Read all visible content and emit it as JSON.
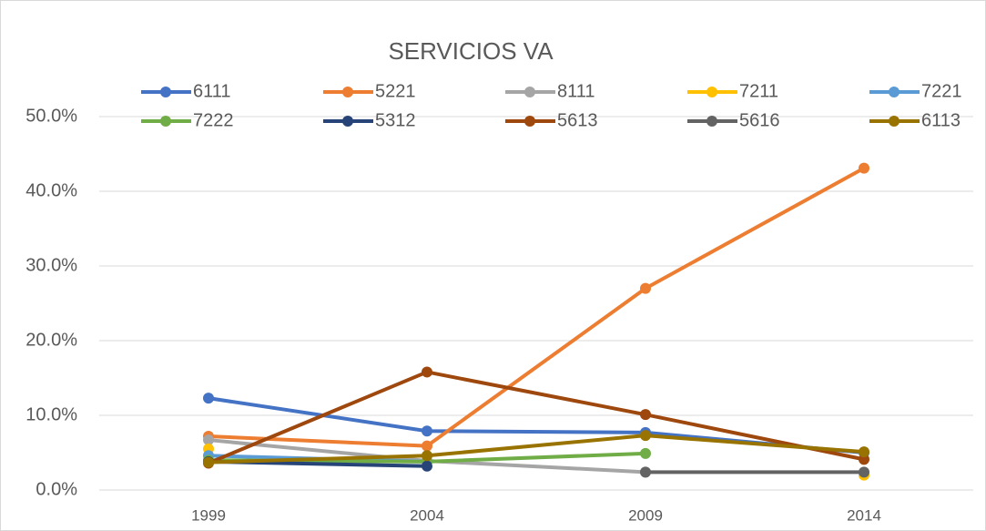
{
  "chart_data": {
    "type": "line",
    "title": "SERVICIOS VA",
    "categories": [
      "1999",
      "2004",
      "2009",
      "2014"
    ],
    "series": [
      {
        "name": "6111",
        "color": "#4472c4",
        "values": [
          12.3,
          7.9,
          7.7,
          5.0
        ]
      },
      {
        "name": "5221",
        "color": "#ed7d31",
        "values": [
          7.2,
          5.9,
          27.0,
          43.1
        ]
      },
      {
        "name": "8111",
        "color": "#a5a5a5",
        "values": [
          6.7,
          3.9,
          2.4,
          null
        ]
      },
      {
        "name": "7211",
        "color": "#ffc000",
        "values": [
          5.5,
          null,
          null,
          2.0
        ]
      },
      {
        "name": "7221",
        "color": "#5b9bd5",
        "values": [
          4.6,
          3.8,
          null,
          null
        ]
      },
      {
        "name": "7222",
        "color": "#70ad47",
        "values": [
          4.0,
          3.8,
          4.9,
          null
        ]
      },
      {
        "name": "5312",
        "color": "#264478",
        "values": [
          3.8,
          3.2,
          null,
          null
        ]
      },
      {
        "name": "5613",
        "color": "#9e480e",
        "values": [
          3.6,
          15.8,
          10.1,
          4.1
        ]
      },
      {
        "name": "5616",
        "color": "#636363",
        "values": [
          null,
          null,
          2.4,
          2.4
        ]
      },
      {
        "name": "6113",
        "color": "#997300",
        "values": [
          3.7,
          4.6,
          7.3,
          5.1
        ]
      }
    ],
    "ylim": [
      0,
      50
    ],
    "yticks": [
      {
        "value": 0,
        "label": "0.0%"
      },
      {
        "value": 10,
        "label": "10.0%"
      },
      {
        "value": 20,
        "label": "20.0%"
      },
      {
        "value": 30,
        "label": "30.0%"
      },
      {
        "value": 40,
        "label": "40.0%"
      },
      {
        "value": 50,
        "label": "50.0%"
      }
    ],
    "grid": true,
    "legend": "top"
  }
}
